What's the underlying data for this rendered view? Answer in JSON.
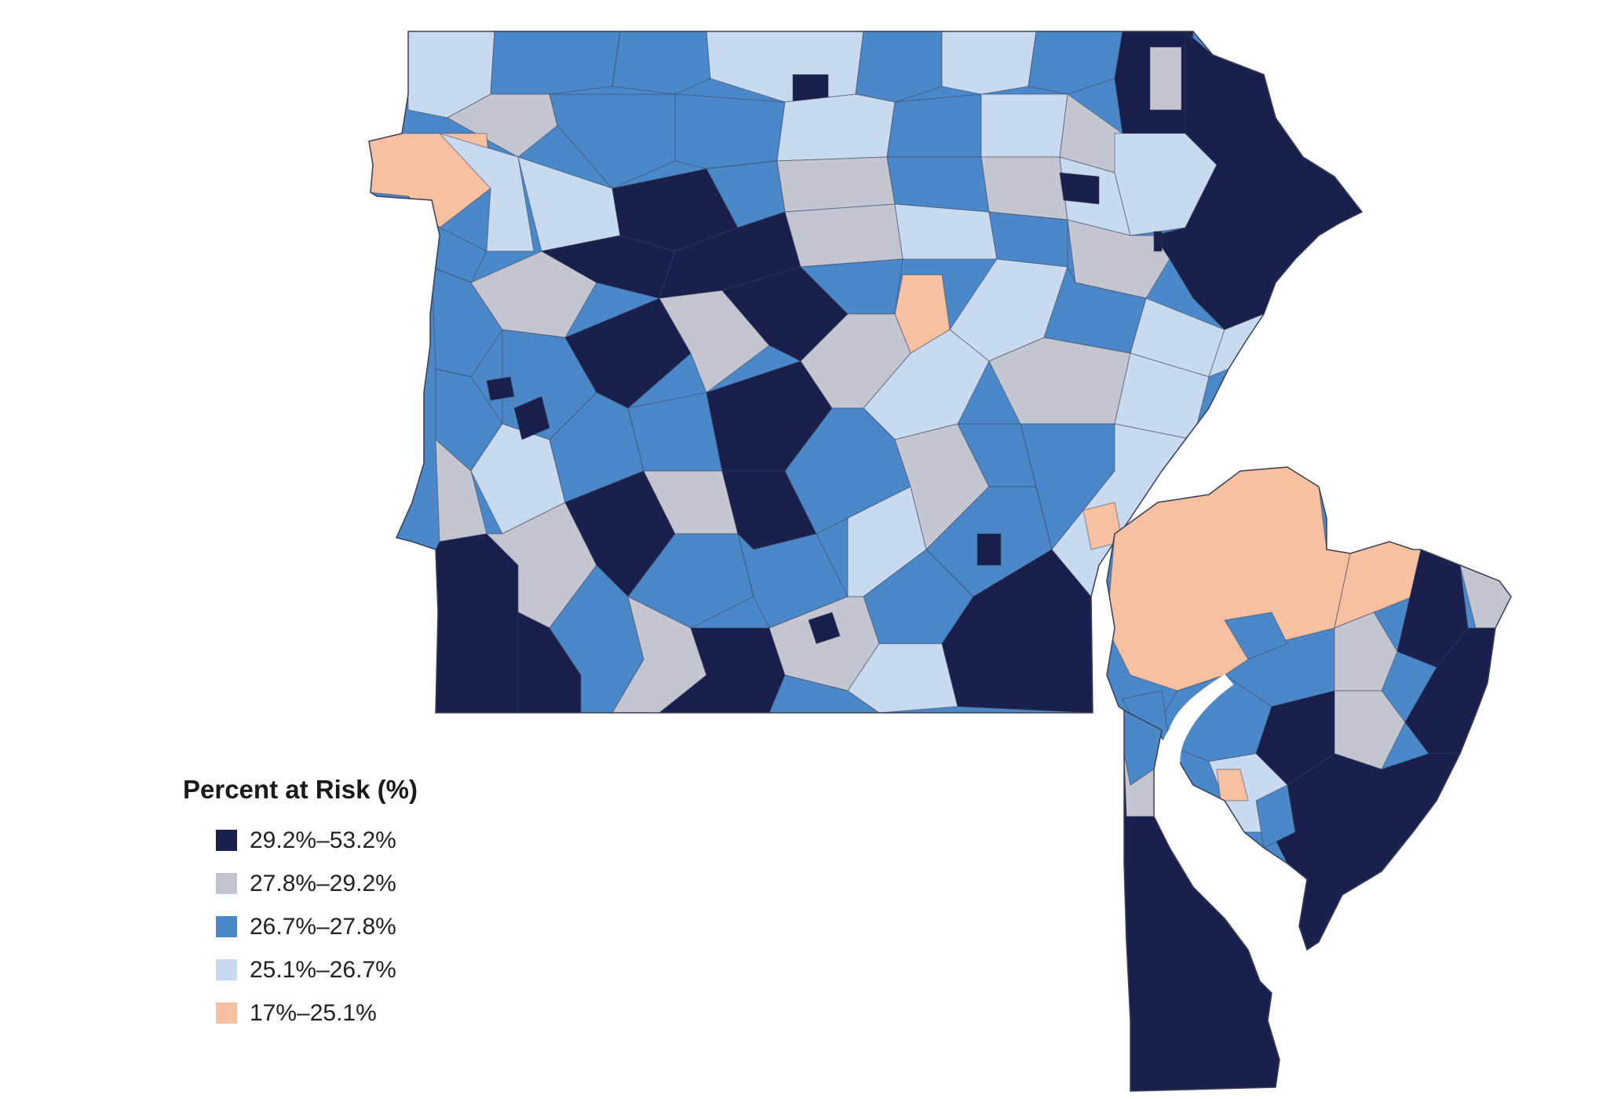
{
  "legend": {
    "title": "Percent at Risk (%)",
    "classes": [
      {
        "label": "29.2%–53.2%",
        "color": "#19204d",
        "min": 29.2,
        "max": 53.2
      },
      {
        "label": "27.8%–29.2%",
        "color": "#c3c5d1",
        "min": 27.8,
        "max": 29.2
      },
      {
        "label": "26.7%–27.8%",
        "color": "#4a88c9",
        "min": 26.7,
        "max": 27.8
      },
      {
        "label": "25.1%–26.7%",
        "color": "#c8daef",
        "min": 25.1,
        "max": 26.7
      },
      {
        "label": "17%–25.1%",
        "color": "#f6c0a1",
        "min": 17,
        "max": 25.1
      }
    ]
  },
  "map": {
    "region": "Pennsylvania, New Jersey and Delaware census tracts",
    "boundary_color": "#3a3f55",
    "water_color": "#ffffff"
  }
}
